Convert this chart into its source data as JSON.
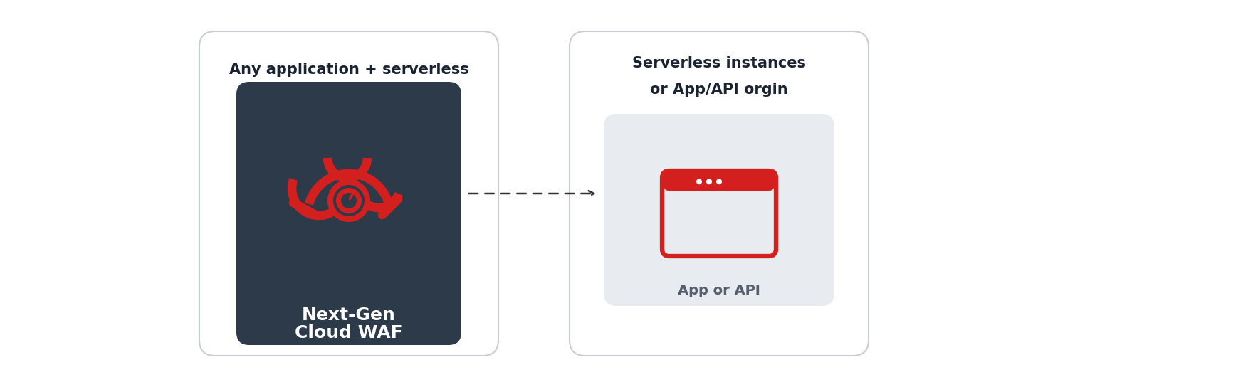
{
  "bg_color": "#ffffff",
  "left_panel_bg": "#ffffff",
  "left_panel_border": "#c8cdd5",
  "left_dark_box_bg": "#2d3a4a",
  "right_panel_bg": "#ffffff",
  "right_panel_border": "#c8cdd5",
  "right_inner_box_bg": "#e8ebef",
  "red_color": "#d41f1f",
  "dark_text": "#1a2332",
  "white_text": "#ffffff",
  "left_title": "Any application + serverless",
  "left_label_line1": "Next-Gen",
  "left_label_line2": "Cloud WAF",
  "right_title_line1": "Serverless instances",
  "right_title_line2": "or App/API orgin",
  "right_label": "App or API"
}
